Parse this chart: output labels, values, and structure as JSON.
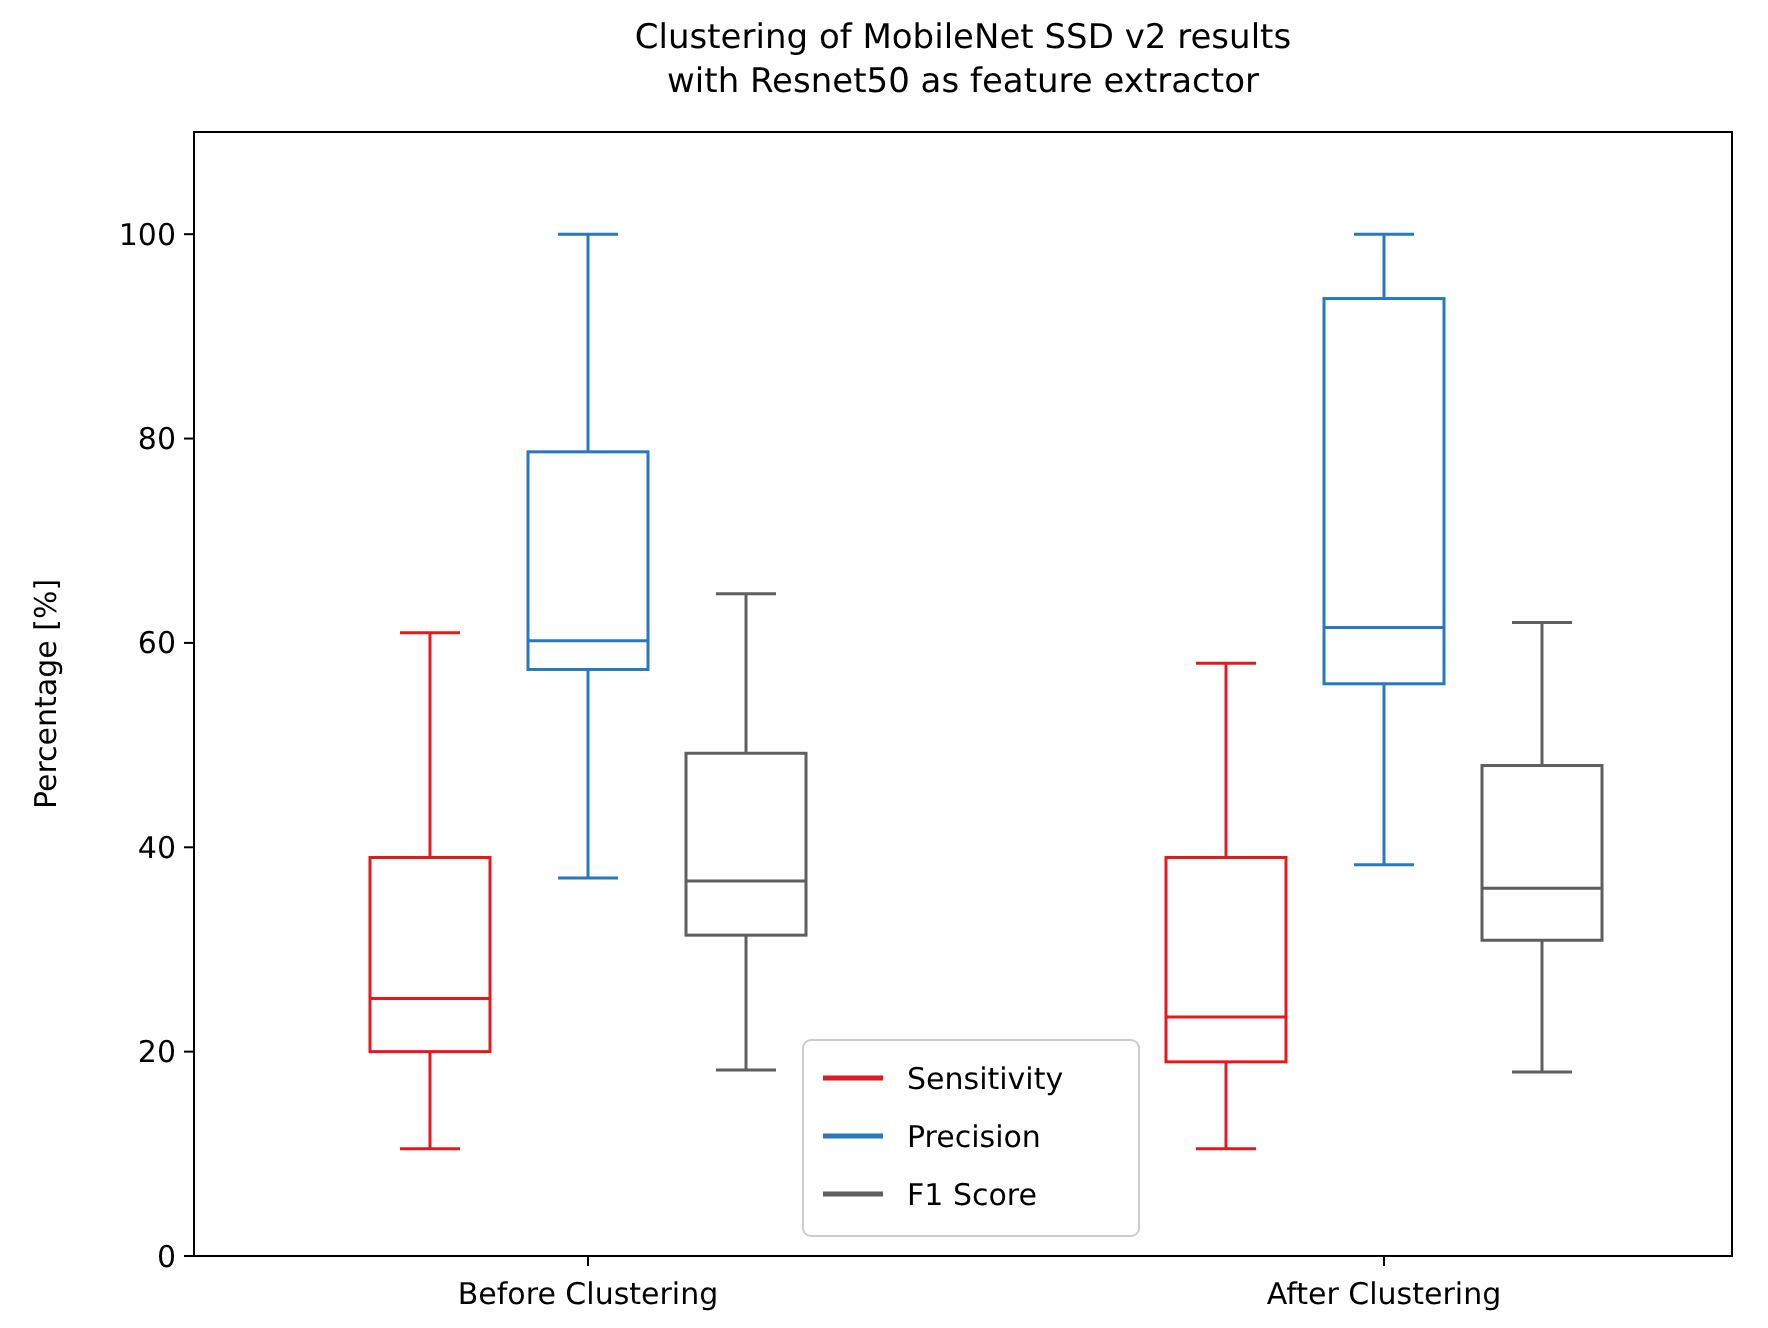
{
  "chart_data": {
    "type": "box",
    "title": "Clustering of MobileNet SSD v2 results\nwith Resnet50 as feature extractor",
    "ylabel": "Percentage [%]",
    "categories": [
      "Before Clustering",
      "After Clustering"
    ],
    "ylim": [
      0,
      110
    ],
    "yticks": [
      0,
      20,
      40,
      60,
      80,
      100
    ],
    "legend": "bottom",
    "grid": false,
    "series": [
      {
        "name": "Sensitivity",
        "color": "#e31a1c",
        "boxes": [
          {
            "low": 10.5,
            "q1": 20,
            "median": 25.2,
            "q3": 39,
            "high": 61
          },
          {
            "low": 10.5,
            "q1": 19,
            "median": 23.4,
            "q3": 39,
            "high": 58
          }
        ]
      },
      {
        "name": "Precision",
        "color": "#2878c0",
        "boxes": [
          {
            "low": 37,
            "q1": 57.4,
            "median": 60.2,
            "q3": 78.7,
            "high": 100
          },
          {
            "low": 38.3,
            "q1": 56,
            "median": 61.5,
            "q3": 93.7,
            "high": 100
          }
        ]
      },
      {
        "name": "F1 Score",
        "color": "#5f5f5f",
        "boxes": [
          {
            "low": 18.2,
            "q1": 31.4,
            "median": 36.7,
            "q3": 49.2,
            "high": 64.8
          },
          {
            "low": 18,
            "q1": 30.9,
            "median": 36,
            "q3": 48,
            "high": 62
          }
        ]
      }
    ]
  }
}
